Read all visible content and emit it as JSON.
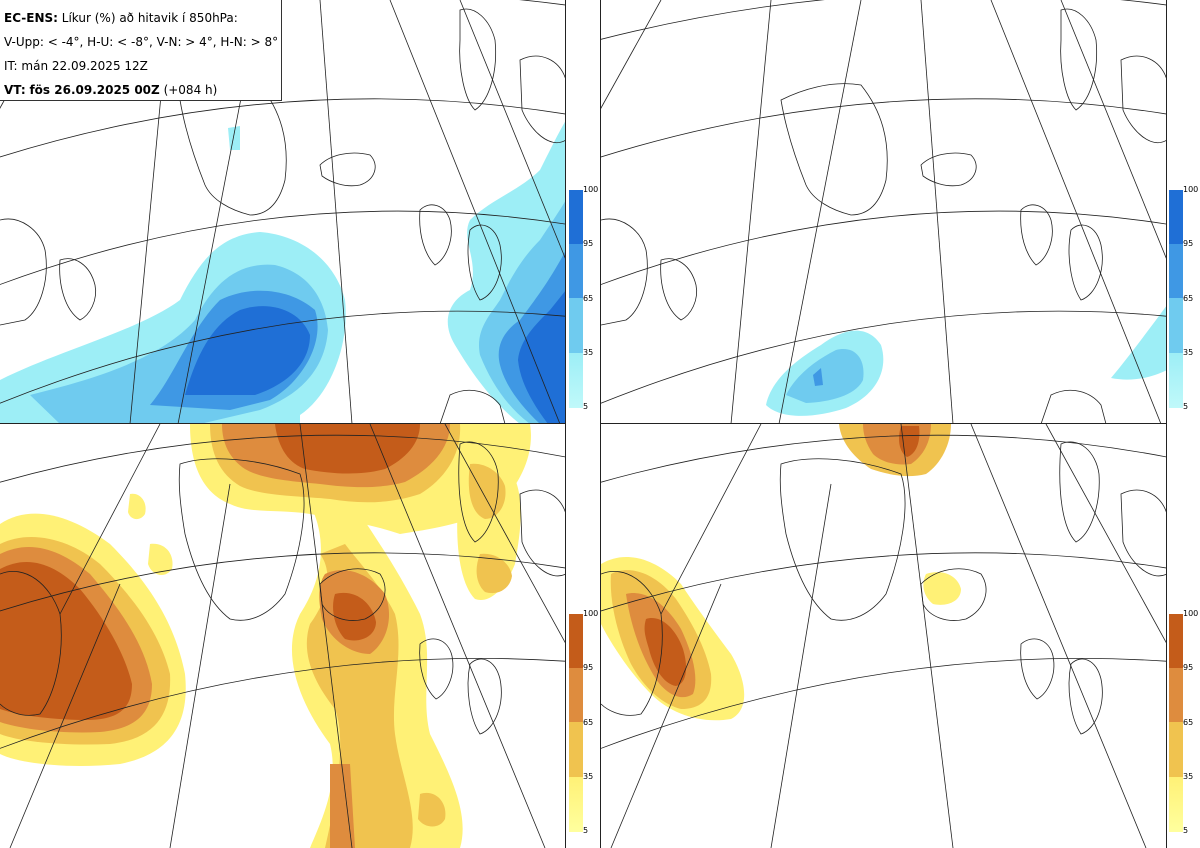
{
  "header": {
    "title_bold": "EC-ENS:",
    "title_rest": "Líkur (%) að hitavik í 850hPa:",
    "thresholds": "V-Upp: < -4°, H-U: < -8°, V-N: > 4°, H-N: > 8°",
    "initial_time": "IT: mán 22.09.2025 12Z",
    "valid_label": "VT:",
    "valid_time": "fös 26.09.2025 00Z",
    "lead": "(+084 h)"
  },
  "panels": [
    {
      "id": "V-Upp",
      "palette": "cold"
    },
    {
      "id": "H-U",
      "palette": "cold"
    },
    {
      "id": "V-N",
      "palette": "warm"
    },
    {
      "id": "H-N",
      "palette": "warm"
    }
  ],
  "colorbar": {
    "ticks": [
      "100",
      "95",
      "65",
      "35",
      "5"
    ],
    "cold_colors": [
      "#1f6fd6",
      "#3f98e4",
      "#6fcbef",
      "#9deef6",
      "#c0f9fa"
    ],
    "warm_colors": [
      "#c45c1a",
      "#de8c3e",
      "#f0c34f",
      "#fff176",
      "#ffff9e"
    ]
  }
}
